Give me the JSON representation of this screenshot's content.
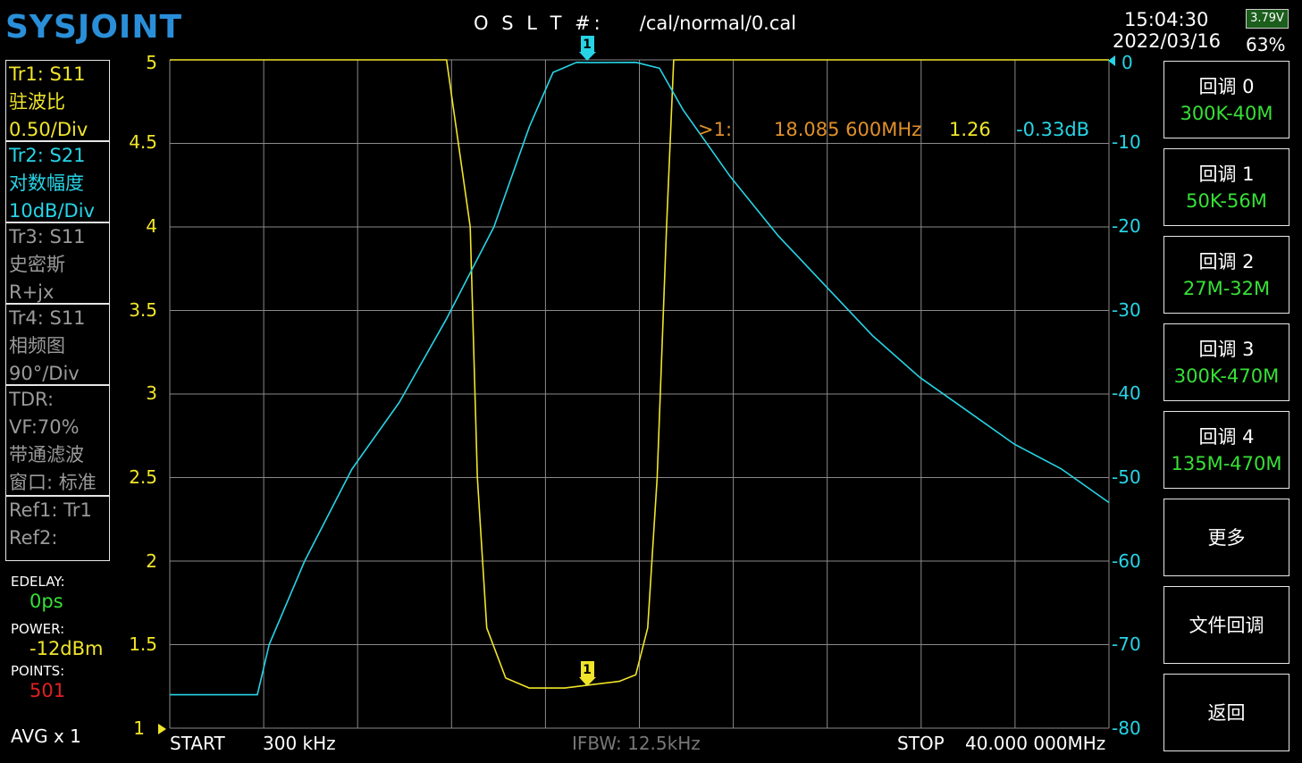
{
  "header": {
    "logo": "SYSJOINT",
    "cal_label": "O S L T #:",
    "cal_file": "/cal/normal/0.cal",
    "time": "15:04:30",
    "date": "2022/03/16",
    "battery_voltage": "3.79V",
    "battery_percent": "63%"
  },
  "traces": [
    {
      "lines": [
        "Tr1:   S11",
        "驻波比",
        "0.50/Div"
      ]
    },
    {
      "lines": [
        "Tr2:   S21",
        "对数幅度",
        "10dB/Div"
      ]
    },
    {
      "lines": [
        "Tr3:   S11",
        "史密斯",
        "R+jx"
      ]
    },
    {
      "lines": [
        "Tr4:   S11",
        "相频图",
        "90°/Div"
      ]
    },
    {
      "lines": [
        "TDR:",
        "VF:70%",
        "带通滤波",
        "窗口: 标准"
      ]
    },
    {
      "lines": [
        "Ref1:  Tr1",
        "Ref2:"
      ]
    }
  ],
  "settings": {
    "edelay_label": "EDELAY:",
    "edelay_value": "0ps",
    "power_label": "POWER:",
    "power_value": "-12dBm",
    "points_label": "POINTS:",
    "points_value": "501",
    "avg": "AVG x 1"
  },
  "marker": {
    "label": ">1:",
    "freq": "18.085 600MHz",
    "swr": "1.26",
    "db": "-0.33dB",
    "id": "1"
  },
  "axes": {
    "left_ticks": [
      "5",
      "4.5",
      "4",
      "3.5",
      "3",
      "2.5",
      "2",
      "1.5",
      "1"
    ],
    "right_ticks": [
      "0",
      "-10",
      "-20",
      "-30",
      "-40",
      "-50",
      "-60",
      "-70",
      "-80"
    ]
  },
  "footer": {
    "start_label": "START",
    "start_value": "300 kHz",
    "ifbw": "IFBW: 12.5kHz",
    "stop_label": "STOP",
    "stop_value": "40.000 000MHz"
  },
  "menu": [
    {
      "title": "回调 0",
      "sub": "300K-40M"
    },
    {
      "title": "回调 1",
      "sub": "50K-56M"
    },
    {
      "title": "回调 2",
      "sub": "27M-32M"
    },
    {
      "title": "回调 3",
      "sub": "300K-470M"
    },
    {
      "title": "回调 4",
      "sub": "135M-470M"
    },
    {
      "title": "更多",
      "sub": ""
    },
    {
      "title": "文件回调",
      "sub": ""
    },
    {
      "title": "返回",
      "sub": ""
    }
  ],
  "colors": {
    "tr1": "#f0e52a",
    "tr2": "#27d4e6",
    "grid": "#8a8a8a",
    "button_sub": "#37e037",
    "marker_freq": "#e0902a",
    "points": "#e02020"
  },
  "chart_data": {
    "type": "line",
    "x_start_hz": 300000,
    "x_stop_hz": 40000000,
    "series": [
      {
        "name": "Tr1: S11 驻波比",
        "unit": "SWR",
        "ylim": [
          1,
          5
        ],
        "points_mhz": [
          [
            0.3,
            5
          ],
          [
            12.0,
            5
          ],
          [
            13.0,
            4.0
          ],
          [
            13.3,
            2.5
          ],
          [
            13.7,
            1.6
          ],
          [
            14.5,
            1.3
          ],
          [
            15.5,
            1.24
          ],
          [
            17.0,
            1.24
          ],
          [
            18.1,
            1.26
          ],
          [
            19.3,
            1.28
          ],
          [
            20.0,
            1.32
          ],
          [
            20.5,
            1.6
          ],
          [
            20.9,
            2.5
          ],
          [
            21.3,
            4.0
          ],
          [
            21.6,
            5
          ],
          [
            40,
            5
          ]
        ]
      },
      {
        "name": "Tr2: S21 对数幅度",
        "unit": "dB",
        "ylim": [
          -80,
          0
        ],
        "points_mhz": [
          [
            0.3,
            -76
          ],
          [
            4.0,
            -76
          ],
          [
            4.5,
            -70
          ],
          [
            6.0,
            -60
          ],
          [
            8.0,
            -49
          ],
          [
            10.0,
            -41
          ],
          [
            12.0,
            -31
          ],
          [
            14.0,
            -20
          ],
          [
            15.5,
            -8
          ],
          [
            16.5,
            -1.5
          ],
          [
            17.5,
            -0.3
          ],
          [
            18.1,
            -0.33
          ],
          [
            20.0,
            -0.3
          ],
          [
            21.0,
            -1
          ],
          [
            22.0,
            -6
          ],
          [
            24.0,
            -14
          ],
          [
            26.0,
            -21
          ],
          [
            28.0,
            -27
          ],
          [
            30.0,
            -33
          ],
          [
            32.0,
            -38
          ],
          [
            34.0,
            -42
          ],
          [
            36.0,
            -46
          ],
          [
            38.0,
            -49
          ],
          [
            40.0,
            -53
          ]
        ]
      }
    ]
  }
}
